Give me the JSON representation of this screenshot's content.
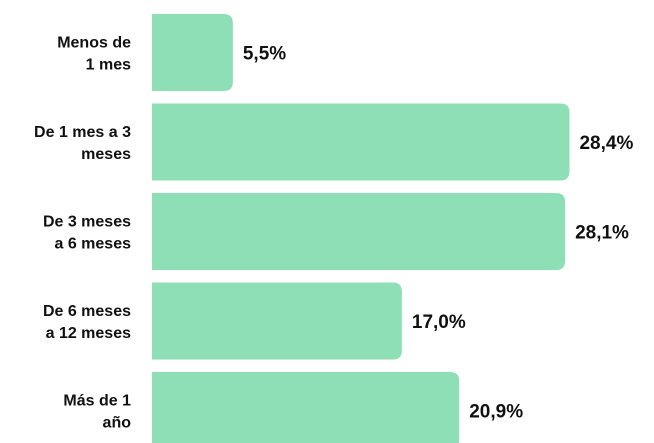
{
  "chart_data": {
    "type": "bar",
    "orientation": "horizontal",
    "categories": [
      [
        "Menos de",
        "1 mes"
      ],
      [
        "De 1 mes a 3",
        "meses"
      ],
      [
        "De 3 meses",
        "a 6 meses"
      ],
      [
        "De 6 meses",
        "a 12 meses"
      ],
      [
        "Más de 1",
        "año"
      ]
    ],
    "values": [
      5.5,
      28.4,
      28.1,
      17.0,
      20.9
    ],
    "value_labels": [
      "5,5%",
      "28,4%",
      "28,1%",
      "17,0%",
      "20,9%"
    ],
    "value_unit": "%",
    "xlim": [
      0,
      30
    ],
    "grid": false,
    "legend": "none",
    "colors": {
      "bar": "#8edfb5",
      "text": "#111111"
    }
  }
}
